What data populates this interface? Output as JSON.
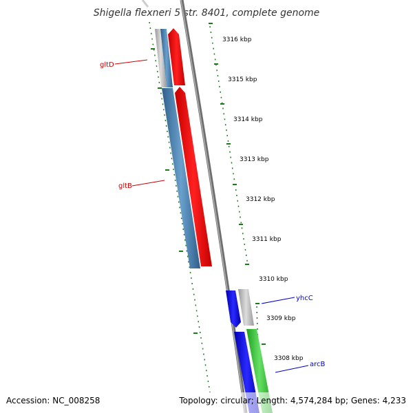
{
  "title": "Shigella flexneri 5 str. 8401, complete genome",
  "footer": {
    "accession": "Accession: NC_008258",
    "topology": "Topology: circular; Length: 4,574,284 bp; Genes: 4,233"
  },
  "scale": {
    "unit": "kbp",
    "ticks": [
      "3316 kbp",
      "3315 kbp",
      "3314 kbp",
      "3313 kbp",
      "3312 kbp",
      "3311 kbp",
      "3310 kbp",
      "3309 kbp",
      "3308 kbp"
    ]
  },
  "genes": [
    {
      "name": "gltD",
      "color": "#cc0000"
    },
    {
      "name": "gltB",
      "color": "#cc0000"
    },
    {
      "name": "yhcC",
      "color": "#0000cc"
    },
    {
      "name": "arcB",
      "color": "#0000cc"
    }
  ],
  "colors": {
    "backbone": "#888888",
    "tick_ring": "#1a7a1a",
    "red_track": "#ff0000",
    "steelblue_track": "#4682b4",
    "blue_track": "#0000ff",
    "green_track": "#33cc33",
    "gray_track": "#bbbbbb"
  }
}
